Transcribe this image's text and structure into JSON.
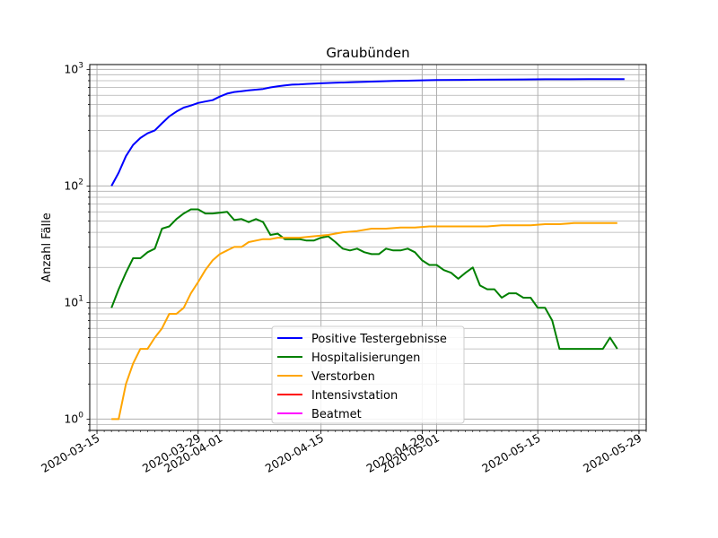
{
  "chart_data": {
    "type": "line",
    "title": "Graubünden",
    "xlabel": "",
    "ylabel": "Anzahl Fälle",
    "yscale": "log",
    "ylim": [
      0.8,
      1100
    ],
    "xlim": [
      "2020-03-14",
      "2020-05-30"
    ],
    "grid": true,
    "legend_position": "lower center",
    "x_ticks": [
      "2020-03-15",
      "2020-03-29",
      "2020-04-01",
      "2020-04-15",
      "2020-04-29",
      "2020-05-01",
      "2020-05-15",
      "2020-05-29"
    ],
    "y_ticks": [
      {
        "value": 1,
        "label": "10",
        "exp": "0"
      },
      {
        "value": 10,
        "label": "10",
        "exp": "1"
      },
      {
        "value": 100,
        "label": "10",
        "exp": "2"
      },
      {
        "value": 1000,
        "label": "10",
        "exp": "3"
      }
    ],
    "series": [
      {
        "name": "Positive Testergebnisse",
        "color": "#0000ff",
        "x": [
          "2020-03-17",
          "2020-03-18",
          "2020-03-19",
          "2020-03-20",
          "2020-03-21",
          "2020-03-22",
          "2020-03-23",
          "2020-03-24",
          "2020-03-25",
          "2020-03-26",
          "2020-03-27",
          "2020-03-28",
          "2020-03-29",
          "2020-03-30",
          "2020-03-31",
          "2020-04-01",
          "2020-04-02",
          "2020-04-03",
          "2020-04-04",
          "2020-04-05",
          "2020-04-06",
          "2020-04-07",
          "2020-04-08",
          "2020-04-09",
          "2020-04-10",
          "2020-04-11",
          "2020-04-12",
          "2020-04-13",
          "2020-04-14",
          "2020-04-15",
          "2020-04-17",
          "2020-04-19",
          "2020-04-21",
          "2020-04-23",
          "2020-04-25",
          "2020-04-27",
          "2020-04-29",
          "2020-05-01",
          "2020-05-04",
          "2020-05-07",
          "2020-05-10",
          "2020-05-13",
          "2020-05-16",
          "2020-05-19",
          "2020-05-22",
          "2020-05-25",
          "2020-05-27"
        ],
        "y": [
          100,
          130,
          180,
          225,
          258,
          283,
          300,
          345,
          395,
          435,
          470,
          490,
          515,
          530,
          545,
          585,
          620,
          640,
          650,
          660,
          670,
          680,
          700,
          715,
          728,
          740,
          744,
          750,
          754,
          760,
          768,
          775,
          782,
          790,
          796,
          800,
          805,
          810,
          812,
          815,
          817,
          820,
          822,
          823,
          824,
          825,
          826
        ]
      },
      {
        "name": "Hospitalisierungen",
        "color": "#008000",
        "x": [
          "2020-03-17",
          "2020-03-18",
          "2020-03-19",
          "2020-03-20",
          "2020-03-21",
          "2020-03-22",
          "2020-03-23",
          "2020-03-24",
          "2020-03-25",
          "2020-03-26",
          "2020-03-27",
          "2020-03-28",
          "2020-03-29",
          "2020-03-30",
          "2020-03-31",
          "2020-04-01",
          "2020-04-02",
          "2020-04-03",
          "2020-04-04",
          "2020-04-05",
          "2020-04-06",
          "2020-04-07",
          "2020-04-08",
          "2020-04-09",
          "2020-04-10",
          "2020-04-11",
          "2020-04-12",
          "2020-04-13",
          "2020-04-14",
          "2020-04-15",
          "2020-04-16",
          "2020-04-17",
          "2020-04-18",
          "2020-04-19",
          "2020-04-20",
          "2020-04-21",
          "2020-04-22",
          "2020-04-23",
          "2020-04-24",
          "2020-04-25",
          "2020-04-26",
          "2020-04-27",
          "2020-04-28",
          "2020-04-29",
          "2020-04-30",
          "2020-05-01",
          "2020-05-02",
          "2020-05-03",
          "2020-05-04",
          "2020-05-05",
          "2020-05-06",
          "2020-05-07",
          "2020-05-08",
          "2020-05-09",
          "2020-05-10",
          "2020-05-11",
          "2020-05-12",
          "2020-05-13",
          "2020-05-14",
          "2020-05-15",
          "2020-05-16",
          "2020-05-17",
          "2020-05-18",
          "2020-05-19",
          "2020-05-20",
          "2020-05-21",
          "2020-05-22",
          "2020-05-23",
          "2020-05-24",
          "2020-05-25",
          "2020-05-26"
        ],
        "y": [
          9,
          13,
          18,
          24,
          24,
          27,
          29,
          43,
          45,
          52,
          58,
          63,
          63,
          58,
          58,
          59,
          60,
          51,
          52,
          49,
          52,
          49,
          38,
          39,
          35,
          35,
          35,
          34,
          34,
          36,
          37,
          33,
          29,
          28,
          29,
          27,
          26,
          26,
          29,
          28,
          28,
          29,
          27,
          23,
          21,
          21,
          19,
          18,
          16,
          18,
          20,
          14,
          13,
          13,
          11,
          12,
          12,
          11,
          11,
          9,
          9,
          7,
          4,
          4,
          4,
          4,
          4,
          4,
          4,
          5,
          4
        ]
      },
      {
        "name": "Verstorben",
        "color": "#ffa500",
        "x": [
          "2020-03-17",
          "2020-03-18",
          "2020-03-19",
          "2020-03-20",
          "2020-03-21",
          "2020-03-22",
          "2020-03-23",
          "2020-03-24",
          "2020-03-25",
          "2020-03-26",
          "2020-03-27",
          "2020-03-28",
          "2020-03-29",
          "2020-03-30",
          "2020-03-31",
          "2020-04-01",
          "2020-04-02",
          "2020-04-03",
          "2020-04-04",
          "2020-04-05",
          "2020-04-06",
          "2020-04-07",
          "2020-04-08",
          "2020-04-09",
          "2020-04-10",
          "2020-04-12",
          "2020-04-14",
          "2020-04-16",
          "2020-04-18",
          "2020-04-20",
          "2020-04-22",
          "2020-04-24",
          "2020-04-26",
          "2020-04-28",
          "2020-04-30",
          "2020-05-02",
          "2020-05-04",
          "2020-05-06",
          "2020-05-08",
          "2020-05-10",
          "2020-05-12",
          "2020-05-14",
          "2020-05-16",
          "2020-05-18",
          "2020-05-20",
          "2020-05-22",
          "2020-05-24",
          "2020-05-26"
        ],
        "y": [
          1,
          1,
          2,
          3,
          4,
          4,
          5,
          6,
          8,
          8,
          9,
          12,
          15,
          19,
          23,
          26,
          28,
          30,
          30,
          33,
          34,
          35,
          35,
          36,
          36,
          36,
          37,
          38,
          40,
          41,
          43,
          43,
          44,
          44,
          45,
          45,
          45,
          45,
          45,
          46,
          46,
          46,
          47,
          47,
          48,
          48,
          48,
          48
        ]
      },
      {
        "name": "Intensivstation",
        "color": "#ff0000",
        "x": [],
        "y": []
      },
      {
        "name": "Beatmet",
        "color": "#ff00ff",
        "x": [],
        "y": []
      }
    ]
  }
}
